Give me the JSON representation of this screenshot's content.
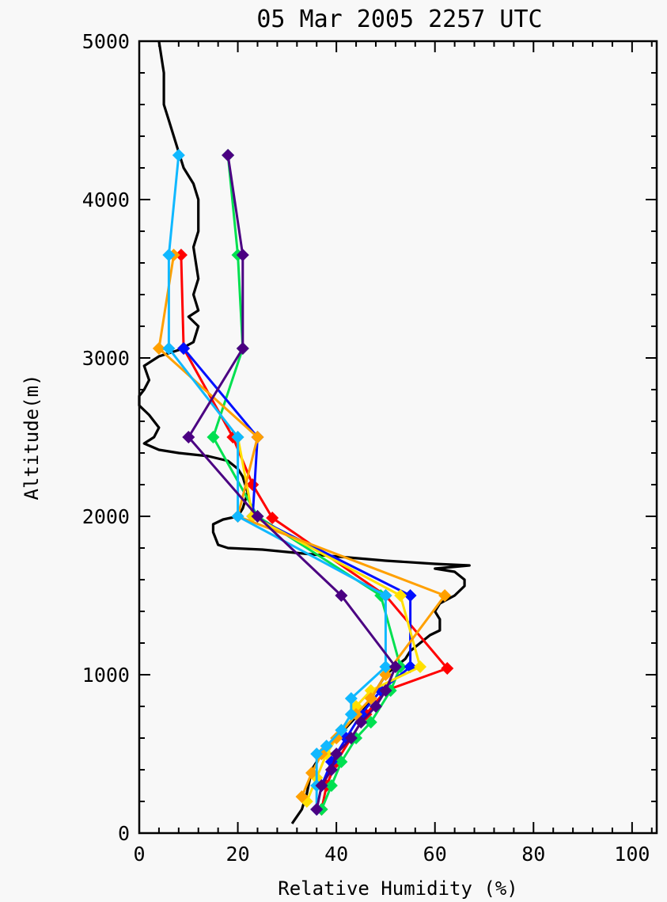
{
  "chart_data": {
    "type": "line",
    "title": "05 Mar 2005 2257 UTC",
    "xlabel": "Relative Humidity (%)",
    "ylabel": "Altitude(m)",
    "xlim": [
      0,
      105
    ],
    "ylim": [
      0,
      5000
    ],
    "x_ticks": [
      "0",
      "20",
      "40",
      "60",
      "80",
      "100"
    ],
    "y_ticks": [
      "0",
      "1000",
      "2000",
      "3000",
      "4000",
      "5000"
    ],
    "grid": false,
    "legend": "none",
    "series": [
      {
        "color": "#000000",
        "marker": false,
        "points": [
          [
            31,
            60
          ],
          [
            33,
            150
          ],
          [
            34,
            250
          ],
          [
            35,
            400
          ],
          [
            37,
            500
          ],
          [
            40,
            600
          ],
          [
            43,
            700
          ],
          [
            46,
            800
          ],
          [
            48,
            900
          ],
          [
            50,
            1000
          ],
          [
            52,
            1050
          ],
          [
            54,
            1100
          ],
          [
            55,
            1150
          ],
          [
            57,
            1200
          ],
          [
            59,
            1250
          ],
          [
            61,
            1280
          ],
          [
            61,
            1350
          ],
          [
            60,
            1400
          ],
          [
            61,
            1450
          ],
          [
            64,
            1500
          ],
          [
            66,
            1560
          ],
          [
            66,
            1600
          ],
          [
            64,
            1650
          ],
          [
            60,
            1670
          ],
          [
            67,
            1690
          ],
          [
            60,
            1700
          ],
          [
            50,
            1720
          ],
          [
            35,
            1760
          ],
          [
            25,
            1790
          ],
          [
            18,
            1800
          ],
          [
            16,
            1820
          ],
          [
            15,
            1900
          ],
          [
            15,
            1950
          ],
          [
            17,
            1980
          ],
          [
            20,
            2000
          ],
          [
            21,
            2050
          ],
          [
            22,
            2150
          ],
          [
            21,
            2250
          ],
          [
            20,
            2300
          ],
          [
            18,
            2350
          ],
          [
            14,
            2380
          ],
          [
            8,
            2400
          ],
          [
            4,
            2420
          ],
          [
            1,
            2460
          ],
          [
            3,
            2500
          ],
          [
            4,
            2560
          ],
          [
            2,
            2640
          ],
          [
            0,
            2700
          ],
          [
            0,
            2760
          ],
          [
            1,
            2800
          ],
          [
            2,
            2860
          ],
          [
            1,
            2950
          ],
          [
            4,
            3010
          ],
          [
            8,
            3050
          ],
          [
            11,
            3100
          ],
          [
            12,
            3200
          ],
          [
            10,
            3260
          ],
          [
            12,
            3300
          ],
          [
            11,
            3400
          ],
          [
            12,
            3500
          ],
          [
            11,
            3700
          ],
          [
            12,
            3800
          ],
          [
            12,
            3900
          ],
          [
            12,
            4000
          ],
          [
            11,
            4100
          ],
          [
            9,
            4200
          ],
          [
            8,
            4300
          ],
          [
            7,
            4400
          ],
          [
            6,
            4500
          ],
          [
            5,
            4600
          ],
          [
            5,
            4800
          ],
          [
            4,
            5000
          ]
        ]
      },
      {
        "color": "#ff0000",
        "marker": true,
        "points": [
          [
            37,
            150
          ],
          [
            38,
            300
          ],
          [
            40,
            450
          ],
          [
            43,
            600
          ],
          [
            46,
            750
          ],
          [
            50,
            900
          ],
          [
            62.5,
            1040
          ],
          [
            50,
            1500
          ],
          [
            27,
            1990
          ],
          [
            23,
            2200
          ],
          [
            19,
            2500
          ],
          [
            9,
            3060
          ],
          [
            8.5,
            3650
          ]
        ]
      },
      {
        "color": "#00e050",
        "marker": true,
        "points": [
          [
            37,
            150
          ],
          [
            39,
            300
          ],
          [
            41,
            450
          ],
          [
            44,
            600
          ],
          [
            47,
            700
          ],
          [
            51,
            900
          ],
          [
            53,
            1050
          ],
          [
            49,
            1500
          ],
          [
            24,
            2000
          ],
          [
            15,
            2500
          ],
          [
            21,
            3060
          ],
          [
            20,
            3650
          ],
          [
            18,
            4280
          ]
        ]
      },
      {
        "color": "#0010ff",
        "marker": true,
        "points": [
          [
            36,
            150
          ],
          [
            37,
            300
          ],
          [
            39,
            450
          ],
          [
            42,
            600
          ],
          [
            45,
            750
          ],
          [
            49,
            900
          ],
          [
            55,
            1050
          ],
          [
            55,
            1500
          ],
          [
            23,
            2000
          ],
          [
            24,
            2500
          ],
          [
            9,
            3060
          ]
        ]
      },
      {
        "color": "#ffe000",
        "marker": true,
        "points": [
          [
            34,
            200
          ],
          [
            36,
            350
          ],
          [
            38,
            500
          ],
          [
            41,
            650
          ],
          [
            44,
            800
          ],
          [
            47,
            900
          ],
          [
            57,
            1050
          ],
          [
            53,
            1500
          ],
          [
            23,
            2000
          ],
          [
            20,
            2500
          ]
        ]
      },
      {
        "color": "#ffa000",
        "marker": true,
        "points": [
          [
            33,
            230
          ],
          [
            35,
            380
          ],
          [
            37,
            500
          ],
          [
            40,
            600
          ],
          [
            44,
            750
          ],
          [
            47,
            850
          ],
          [
            50,
            1000
          ],
          [
            62,
            1500
          ],
          [
            20,
            2000
          ],
          [
            24,
            2500
          ],
          [
            4,
            3060
          ],
          [
            7,
            3650
          ]
        ]
      },
      {
        "color": "#10b8ff",
        "marker": true,
        "points": [
          [
            36,
            150
          ],
          [
            36,
            300
          ],
          [
            36,
            500
          ],
          [
            38,
            550
          ],
          [
            41,
            650
          ],
          [
            43,
            750
          ],
          [
            43,
            850
          ],
          [
            50,
            1050
          ],
          [
            50,
            1500
          ],
          [
            20,
            2000
          ],
          [
            20,
            2500
          ],
          [
            6,
            3060
          ],
          [
            6,
            3650
          ],
          [
            8,
            4280
          ]
        ]
      },
      {
        "color": "#4b0082",
        "marker": true,
        "points": [
          [
            36,
            150
          ],
          [
            37,
            300
          ],
          [
            39,
            400
          ],
          [
            40,
            500
          ],
          [
            43,
            600
          ],
          [
            45,
            700
          ],
          [
            48,
            800
          ],
          [
            50,
            900
          ],
          [
            52,
            1050
          ],
          [
            41,
            1500
          ],
          [
            24,
            2000
          ],
          [
            10,
            2500
          ],
          [
            21,
            3060
          ],
          [
            21,
            3650
          ],
          [
            18,
            4280
          ]
        ]
      }
    ]
  }
}
